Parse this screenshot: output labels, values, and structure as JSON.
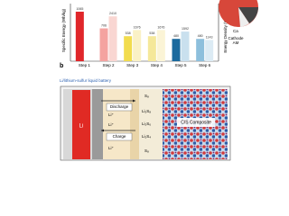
{
  "chart_data": {
    "type": "bar",
    "panel_label": "b",
    "y_label": "Specific Energy (Wh/kg)",
    "y2_label": "Energy Density (Wh/L)",
    "categories": [
      "Step 1",
      "Step 2",
      "Step 3",
      "Step 4",
      "Step 5",
      "Step 6"
    ],
    "series": [
      {
        "name": "Specific Energy",
        "colors": [
          "#e0262a",
          "#f4a3a0",
          "#f2dc4e",
          "#f5e89a",
          "#1b6a9e",
          "#8dbfdc"
        ],
        "values": [
          1065,
          706,
          538,
          538,
          480,
          480
        ]
      },
      {
        "name": "Energy Density",
        "axis": "y2",
        "colors": [
          "#f6c9c6",
          "#f9d6d2",
          "#faf1c6",
          "#fbf4d6",
          "#c9e0ee",
          "#dcebf4"
        ],
        "values": [
          null,
          2410,
          1676,
          1676,
          1592,
          1143
        ]
      }
    ],
    "ylim": [
      0,
      1200
    ],
    "y2lim": [
      0,
      3000
    ],
    "pie_labels": [
      "Ca",
      "Cathode",
      "AM"
    ]
  },
  "diagram": {
    "title": "Li/lithium-sulfur liquid battery",
    "anode": "Li",
    "discharge": "Discharge",
    "charge": "Charge",
    "ions": [
      "Li⁺",
      "Li⁺",
      "Li⁺"
    ],
    "species": [
      "S₈",
      "Li₂S₈",
      "Li₂S₆",
      "Li₂S₄",
      "S₈"
    ],
    "cathode": "C/S Composite"
  }
}
